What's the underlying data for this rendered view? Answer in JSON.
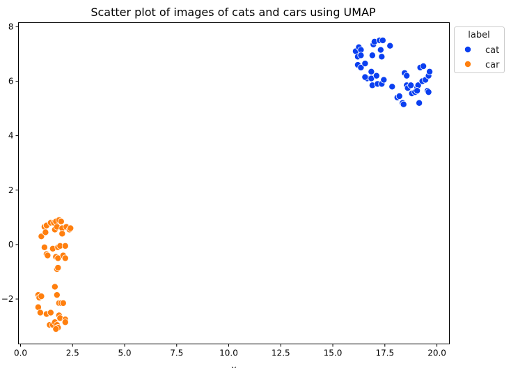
{
  "chart_data": {
    "type": "scatter",
    "title": "Scatter plot of images of cats and cars using UMAP",
    "xlabel": "x",
    "ylabel": "",
    "xlim": [
      -0.1,
      20.6
    ],
    "ylim": [
      -3.65,
      8.15
    ],
    "xticks": [
      0.0,
      2.5,
      5.0,
      7.5,
      10.0,
      12.5,
      15.0,
      17.5,
      20.0
    ],
    "xtick_labels": [
      "0.0",
      "2.5",
      "5.0",
      "7.5",
      "10.0",
      "12.5",
      "15.0",
      "17.5",
      "20.0"
    ],
    "yticks": [
      -2,
      0,
      2,
      4,
      6,
      8
    ],
    "ytick_labels": [
      "−2",
      "0",
      "2",
      "4",
      "6",
      "8"
    ],
    "grid": false,
    "legend": {
      "title": "label",
      "placement": "upper right outside"
    },
    "series": [
      {
        "name": "cat",
        "color": "#0a3ff0",
        "points": [
          [
            16.1,
            7.1
          ],
          [
            16.25,
            7.25
          ],
          [
            16.35,
            7.15
          ],
          [
            16.2,
            6.9
          ],
          [
            16.35,
            6.95
          ],
          [
            16.2,
            6.6
          ],
          [
            16.35,
            6.5
          ],
          [
            16.55,
            6.65
          ],
          [
            16.65,
            6.1
          ],
          [
            16.55,
            6.15
          ],
          [
            16.85,
            6.1
          ],
          [
            16.85,
            6.35
          ],
          [
            16.9,
            5.85
          ],
          [
            16.9,
            6.95
          ],
          [
            16.95,
            7.35
          ],
          [
            17.0,
            7.45
          ],
          [
            17.1,
            6.2
          ],
          [
            17.15,
            5.9
          ],
          [
            17.25,
            7.5
          ],
          [
            17.3,
            7.15
          ],
          [
            17.35,
            6.9
          ],
          [
            17.35,
            5.9
          ],
          [
            17.4,
            7.5
          ],
          [
            17.45,
            6.05
          ],
          [
            17.75,
            7.3
          ],
          [
            17.85,
            5.8
          ],
          [
            18.1,
            5.4
          ],
          [
            18.2,
            5.45
          ],
          [
            18.35,
            5.2
          ],
          [
            18.4,
            5.15
          ],
          [
            18.45,
            6.3
          ],
          [
            18.55,
            6.2
          ],
          [
            18.55,
            5.85
          ],
          [
            18.6,
            5.75
          ],
          [
            18.75,
            5.85
          ],
          [
            18.8,
            5.55
          ],
          [
            18.95,
            5.6
          ],
          [
            19.05,
            5.75
          ],
          [
            19.1,
            5.85
          ],
          [
            19.15,
            5.2
          ],
          [
            19.2,
            6.5
          ],
          [
            19.3,
            6.0
          ],
          [
            19.35,
            6.55
          ],
          [
            19.45,
            6.05
          ],
          [
            19.55,
            5.65
          ],
          [
            19.6,
            6.2
          ],
          [
            19.65,
            6.35
          ],
          [
            19.6,
            5.6
          ],
          [
            19.05,
            5.65
          ]
        ]
      },
      {
        "name": "car",
        "color": "#ff7f0e",
        "points": [
          [
            1.0,
            0.3
          ],
          [
            1.15,
            0.65
          ],
          [
            1.2,
            0.45
          ],
          [
            1.25,
            0.7
          ],
          [
            1.15,
            -0.1
          ],
          [
            1.25,
            -0.35
          ],
          [
            1.3,
            -0.4
          ],
          [
            1.45,
            0.8
          ],
          [
            1.55,
            -0.15
          ],
          [
            1.6,
            0.8
          ],
          [
            1.65,
            0.55
          ],
          [
            1.7,
            0.85
          ],
          [
            1.7,
            -0.45
          ],
          [
            1.75,
            0.65
          ],
          [
            1.8,
            -0.5
          ],
          [
            1.85,
            0.9
          ],
          [
            1.8,
            -0.1
          ],
          [
            1.9,
            -0.05
          ],
          [
            1.95,
            0.85
          ],
          [
            2.0,
            0.6
          ],
          [
            2.0,
            0.4
          ],
          [
            2.05,
            -0.4
          ],
          [
            2.15,
            -0.5
          ],
          [
            2.15,
            -0.05
          ],
          [
            2.2,
            0.65
          ],
          [
            2.35,
            0.55
          ],
          [
            2.4,
            0.6
          ],
          [
            1.75,
            -0.9
          ],
          [
            1.8,
            -0.85
          ],
          [
            0.85,
            -1.85
          ],
          [
            0.9,
            -1.95
          ],
          [
            1.0,
            -1.9
          ],
          [
            0.85,
            -2.3
          ],
          [
            0.95,
            -2.5
          ],
          [
            1.25,
            -2.55
          ],
          [
            1.45,
            -2.5
          ],
          [
            1.4,
            -2.95
          ],
          [
            1.55,
            -2.95
          ],
          [
            1.65,
            -1.55
          ],
          [
            1.75,
            -1.85
          ],
          [
            1.85,
            -2.15
          ],
          [
            1.95,
            -2.15
          ],
          [
            2.05,
            -2.15
          ],
          [
            1.85,
            -2.6
          ],
          [
            1.9,
            -2.7
          ],
          [
            1.65,
            -2.85
          ],
          [
            1.75,
            -2.95
          ],
          [
            1.8,
            -3.05
          ],
          [
            1.7,
            -3.1
          ],
          [
            2.15,
            -2.75
          ],
          [
            2.15,
            -2.85
          ]
        ]
      }
    ]
  }
}
